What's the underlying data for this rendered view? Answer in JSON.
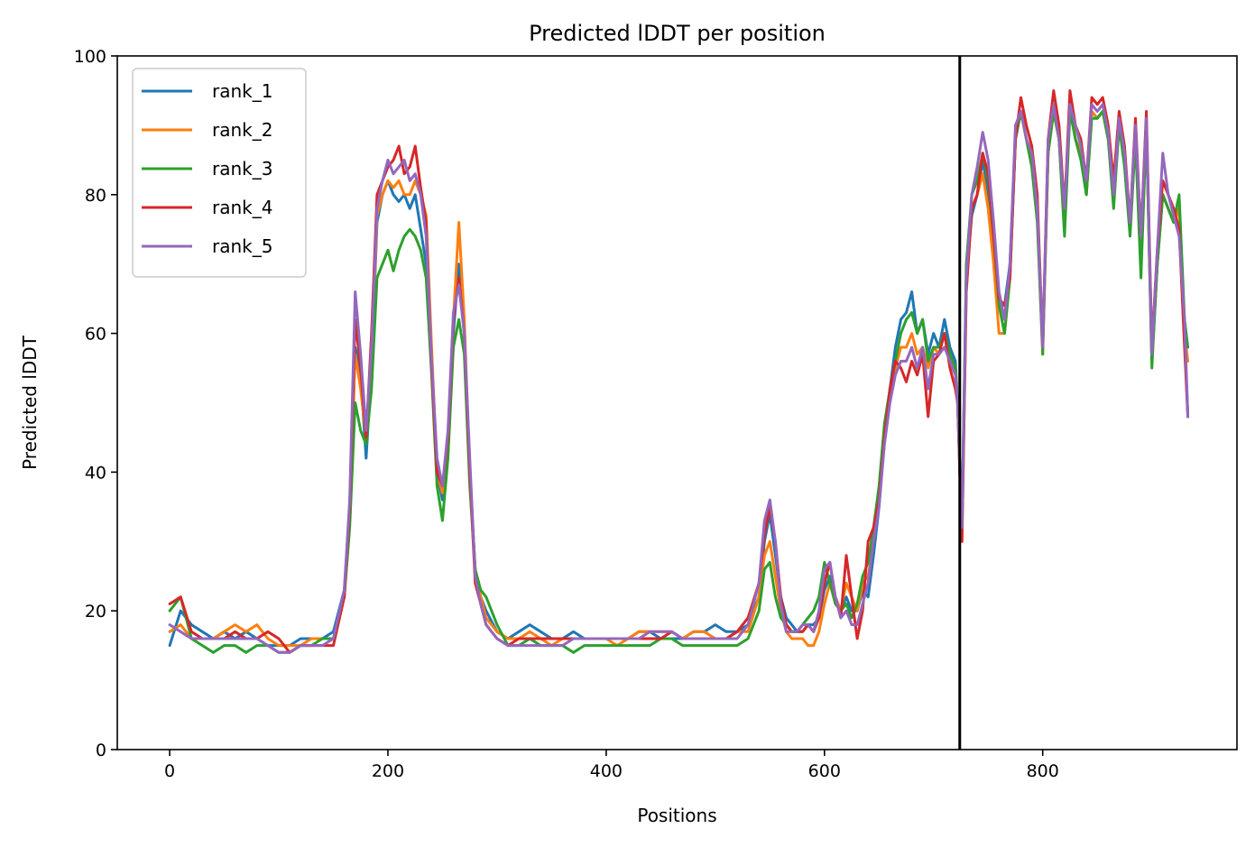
{
  "chart_data": {
    "type": "line",
    "title": "Predicted lDDT per position",
    "xlabel": "Positions",
    "ylabel": "Predicted lDDT",
    "xlim": [
      -48,
      978
    ],
    "ylim": [
      0,
      100
    ],
    "xticks": [
      0,
      200,
      400,
      600,
      800
    ],
    "yticks": [
      0,
      20,
      40,
      60,
      80,
      100
    ],
    "vline_x": 724,
    "legend_position": "top-left",
    "grid": false,
    "x": [
      0,
      10,
      20,
      30,
      40,
      50,
      60,
      70,
      80,
      90,
      100,
      110,
      120,
      130,
      140,
      150,
      160,
      165,
      170,
      175,
      180,
      185,
      190,
      195,
      200,
      205,
      210,
      215,
      220,
      225,
      230,
      235,
      240,
      245,
      250,
      255,
      260,
      265,
      270,
      275,
      280,
      285,
      290,
      300,
      310,
      320,
      330,
      340,
      350,
      360,
      370,
      380,
      390,
      400,
      410,
      420,
      430,
      440,
      450,
      460,
      470,
      480,
      490,
      500,
      510,
      520,
      530,
      540,
      545,
      550,
      555,
      560,
      565,
      570,
      575,
      580,
      585,
      590,
      595,
      600,
      605,
      610,
      615,
      620,
      625,
      630,
      635,
      640,
      645,
      650,
      655,
      660,
      665,
      670,
      675,
      680,
      685,
      690,
      695,
      700,
      705,
      710,
      715,
      720,
      722,
      726,
      730,
      735,
      740,
      745,
      750,
      755,
      760,
      765,
      770,
      775,
      780,
      785,
      790,
      795,
      800,
      805,
      810,
      815,
      820,
      825,
      830,
      835,
      840,
      845,
      850,
      855,
      860,
      865,
      870,
      875,
      880,
      885,
      890,
      895,
      900,
      905,
      910,
      915,
      920,
      925,
      930,
      933
    ],
    "series": [
      {
        "name": "rank_1",
        "color": "#1f77b4",
        "values": [
          15,
          20,
          18,
          17,
          16,
          17,
          16,
          17,
          16,
          15,
          15,
          15,
          16,
          16,
          16,
          17,
          23,
          35,
          58,
          54,
          42,
          55,
          76,
          80,
          82,
          80,
          79,
          80,
          78,
          80,
          75,
          70,
          55,
          40,
          36,
          45,
          60,
          70,
          60,
          40,
          26,
          22,
          20,
          17,
          16,
          17,
          18,
          17,
          16,
          16,
          17,
          16,
          16,
          16,
          16,
          16,
          17,
          17,
          16,
          16,
          16,
          17,
          17,
          18,
          17,
          17,
          18,
          22,
          30,
          34,
          28,
          22,
          19,
          18,
          17,
          17,
          18,
          18,
          19,
          23,
          25,
          22,
          20,
          22,
          20,
          20,
          23,
          22,
          28,
          35,
          45,
          52,
          58,
          62,
          63,
          66,
          60,
          62,
          57,
          60,
          58,
          62,
          58,
          56,
          50,
          33,
          68,
          77,
          80,
          85,
          80,
          72,
          65,
          64,
          70,
          88,
          92,
          88,
          85,
          78,
          58,
          86,
          92,
          88,
          76,
          93,
          88,
          86,
          80,
          92,
          91,
          92,
          88,
          80,
          90,
          85,
          75,
          89,
          72,
          90,
          56,
          70,
          80,
          78,
          76,
          78,
          60,
          48
        ]
      },
      {
        "name": "rank_2",
        "color": "#ff7f0e",
        "values": [
          17,
          18,
          16,
          16,
          16,
          17,
          18,
          17,
          18,
          16,
          15,
          15,
          15,
          16,
          16,
          16,
          22,
          33,
          57,
          52,
          45,
          56,
          77,
          80,
          82,
          81,
          82,
          80,
          80,
          82,
          80,
          77,
          58,
          40,
          37,
          45,
          62,
          76,
          62,
          40,
          26,
          22,
          19,
          17,
          16,
          16,
          17,
          16,
          15,
          16,
          16,
          16,
          16,
          16,
          15,
          16,
          17,
          17,
          17,
          17,
          16,
          17,
          17,
          16,
          16,
          17,
          17,
          22,
          28,
          30,
          25,
          20,
          17,
          16,
          16,
          16,
          15,
          15,
          17,
          21,
          24,
          22,
          20,
          24,
          22,
          20,
          24,
          25,
          30,
          36,
          46,
          52,
          55,
          58,
          58,
          60,
          57,
          58,
          55,
          58,
          57,
          58,
          57,
          55,
          50,
          30,
          66,
          78,
          80,
          83,
          78,
          70,
          60,
          60,
          68,
          88,
          92,
          88,
          84,
          77,
          57,
          86,
          92,
          88,
          75,
          93,
          88,
          86,
          80,
          92,
          91,
          92,
          88,
          80,
          90,
          85,
          75,
          89,
          72,
          90,
          56,
          70,
          80,
          78,
          76,
          78,
          60,
          56
        ]
      },
      {
        "name": "rank_3",
        "color": "#2ca02c",
        "values": [
          20,
          22,
          16,
          15,
          14,
          15,
          15,
          14,
          15,
          15,
          14,
          14,
          15,
          15,
          16,
          16,
          22,
          32,
          50,
          46,
          44,
          52,
          68,
          70,
          72,
          69,
          72,
          74,
          75,
          74,
          72,
          68,
          54,
          38,
          33,
          42,
          58,
          62,
          57,
          38,
          26,
          23,
          22,
          18,
          15,
          15,
          16,
          15,
          15,
          15,
          14,
          15,
          15,
          15,
          15,
          15,
          15,
          15,
          16,
          16,
          15,
          15,
          15,
          15,
          15,
          15,
          16,
          20,
          26,
          27,
          22,
          19,
          18,
          17,
          17,
          18,
          19,
          20,
          22,
          27,
          24,
          21,
          20,
          21,
          19,
          21,
          25,
          27,
          32,
          38,
          47,
          52,
          56,
          60,
          62,
          63,
          60,
          62,
          56,
          58,
          58,
          60,
          57,
          55,
          50,
          32,
          70,
          80,
          82,
          86,
          82,
          74,
          64,
          60,
          68,
          88,
          92,
          88,
          84,
          76,
          57,
          86,
          92,
          88,
          74,
          92,
          88,
          85,
          80,
          91,
          91,
          92,
          88,
          78,
          90,
          84,
          74,
          88,
          68,
          90,
          55,
          70,
          80,
          78,
          76,
          80,
          62,
          58
        ]
      },
      {
        "name": "rank_4",
        "color": "#d62728",
        "values": [
          21,
          22,
          17,
          16,
          16,
          16,
          17,
          16,
          16,
          17,
          16,
          14,
          15,
          15,
          15,
          15,
          22,
          35,
          62,
          55,
          45,
          60,
          80,
          82,
          84,
          85,
          87,
          83,
          84,
          87,
          81,
          76,
          55,
          40,
          38,
          45,
          62,
          68,
          60,
          40,
          24,
          21,
          18,
          16,
          15,
          16,
          16,
          16,
          16,
          16,
          16,
          16,
          16,
          16,
          16,
          16,
          16,
          16,
          16,
          17,
          16,
          16,
          16,
          16,
          16,
          17,
          19,
          24,
          31,
          35,
          30,
          22,
          18,
          17,
          17,
          17,
          18,
          17,
          19,
          24,
          27,
          22,
          19,
          28,
          22,
          16,
          20,
          30,
          32,
          36,
          45,
          52,
          56,
          55,
          53,
          56,
          54,
          57,
          48,
          56,
          57,
          60,
          55,
          52,
          50,
          30,
          66,
          78,
          80,
          86,
          83,
          74,
          65,
          64,
          68,
          88,
          94,
          90,
          87,
          80,
          58,
          88,
          95,
          90,
          78,
          95,
          90,
          88,
          82,
          94,
          93,
          94,
          90,
          82,
          92,
          87,
          76,
          91,
          74,
          92,
          58,
          72,
          82,
          80,
          78,
          75,
          58,
          48
        ]
      },
      {
        "name": "rank_5",
        "color": "#9467bd",
        "values": [
          18,
          17,
          16,
          16,
          16,
          16,
          16,
          16,
          16,
          15,
          14,
          14,
          15,
          15,
          15,
          16,
          23,
          36,
          66,
          57,
          46,
          58,
          78,
          82,
          85,
          83,
          84,
          85,
          82,
          83,
          80,
          74,
          56,
          42,
          38,
          46,
          63,
          67,
          60,
          42,
          25,
          21,
          18,
          16,
          15,
          15,
          15,
          15,
          15,
          15,
          16,
          16,
          16,
          16,
          16,
          16,
          16,
          17,
          17,
          17,
          16,
          16,
          16,
          16,
          16,
          16,
          18,
          24,
          33,
          36,
          30,
          21,
          17,
          17,
          17,
          18,
          18,
          17,
          20,
          26,
          27,
          22,
          19,
          20,
          18,
          18,
          21,
          24,
          30,
          35,
          44,
          50,
          54,
          56,
          56,
          58,
          55,
          58,
          52,
          57,
          57,
          58,
          56,
          54,
          50,
          32,
          68,
          80,
          84,
          89,
          85,
          76,
          66,
          62,
          70,
          90,
          92,
          88,
          86,
          78,
          58,
          88,
          93,
          88,
          78,
          93,
          90,
          87,
          82,
          93,
          92,
          93,
          89,
          80,
          91,
          86,
          76,
          90,
          74,
          91,
          57,
          72,
          86,
          80,
          77,
          74,
          62,
          48
        ]
      }
    ]
  }
}
